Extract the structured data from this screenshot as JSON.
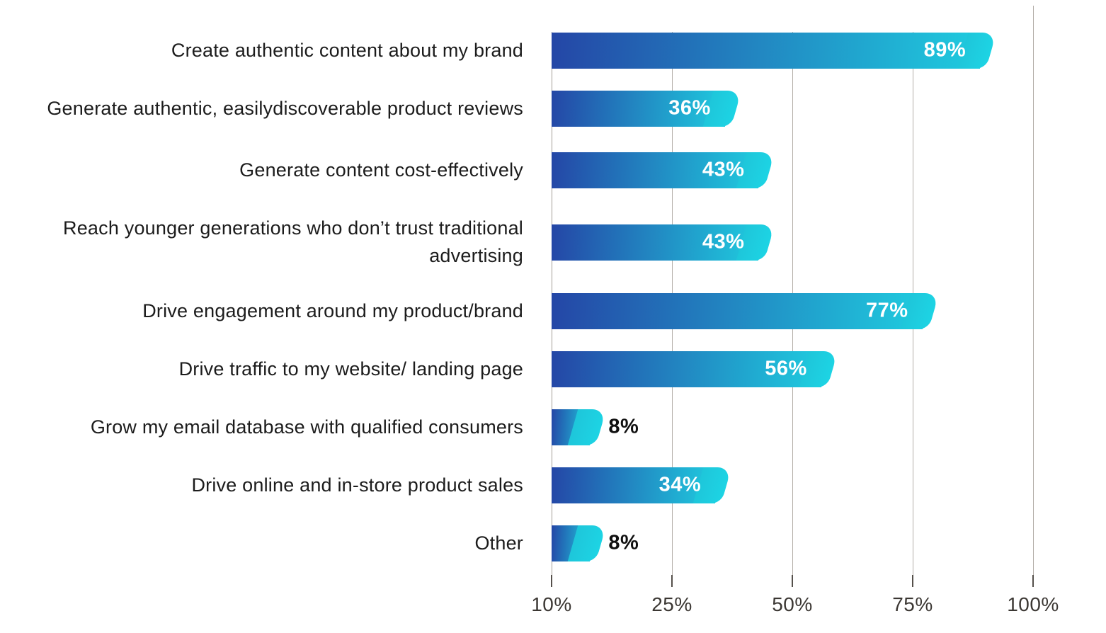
{
  "chart_data": {
    "type": "bar",
    "orientation": "horizontal",
    "title": "",
    "xlabel": "",
    "ylabel": "",
    "grid": "vertical-lines",
    "legend": "none",
    "categories": [
      "Create authentic content about my brand",
      "Generate authentic, easilydiscoverable product reviews",
      "Generate content cost-effectively",
      "Reach younger generations who don’t trust traditional advertising",
      "Drive engagement around my  product/brand",
      "Drive traffic to my website/ landing page",
      "Grow my email database with  qualified consumers",
      "Drive online and in-store  product sales",
      "Other"
    ],
    "values": [
      89,
      36,
      43,
      43,
      77,
      56,
      8,
      34,
      8
    ],
    "value_labels": [
      "89%",
      "36%",
      "43%",
      "43%",
      "77%",
      "56%",
      "8%",
      "34%",
      "8%"
    ],
    "x_tick_labels": [
      "10%",
      "25%",
      "50%",
      "75%",
      "100%"
    ],
    "bar_scale_percent_range": [
      0,
      100
    ],
    "colors": {
      "bar_gradient_start": "#2446a6",
      "bar_gradient_end": "#1fd0e0",
      "value_label_inside": "#ffffff",
      "value_label_outside": "#101010",
      "category_text": "#1c1c1c",
      "tick_text": "#3b3733",
      "gridline": "#b3ada7",
      "tick_mark": "#55504b",
      "background": "#ffffff"
    }
  }
}
